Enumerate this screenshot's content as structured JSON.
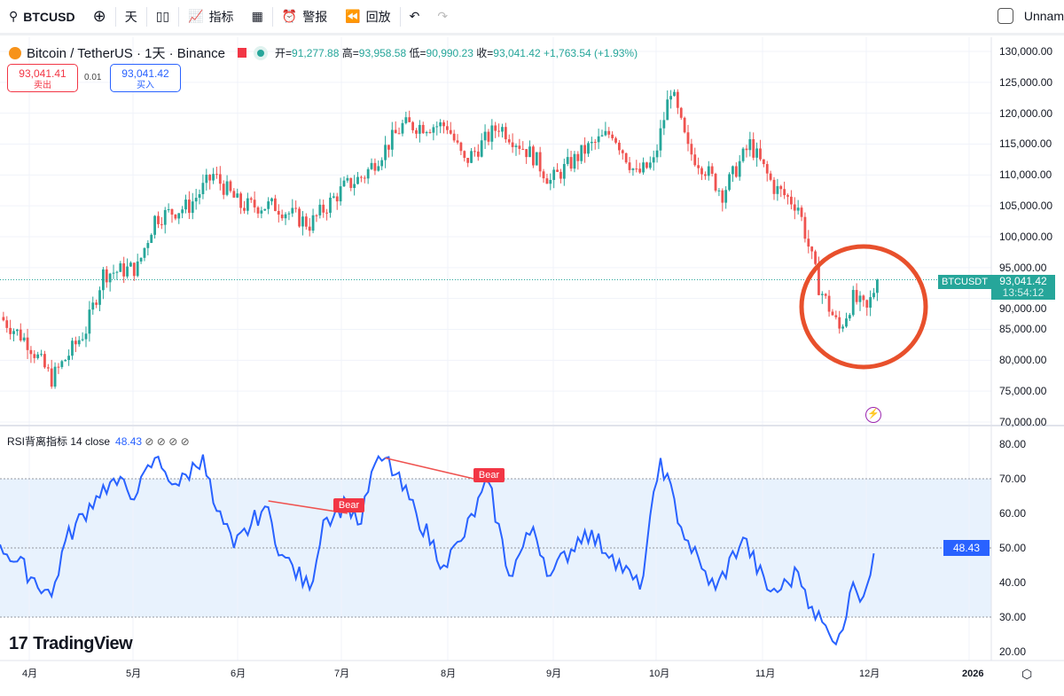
{
  "toolbar": {
    "symbol": "BTCUSD",
    "interval": "天",
    "indicators": "指标",
    "alerts": "警报",
    "replay": "回放",
    "layout_name": "Unnam"
  },
  "legend": {
    "title": "Bitcoin / TetherUS · 1天 · Binance",
    "open_label": "开=",
    "open": "91,277.88",
    "high_label": "高=",
    "high": "93,958.58",
    "low_label": "低=",
    "low": "90,990.23",
    "close_label": "收=",
    "close": "93,041.42",
    "change": "+1,763.54 (+1.93%)"
  },
  "trade": {
    "sell_price": "93,041.41",
    "sell_label": "卖出",
    "spread": "0.01",
    "buy_price": "93,041.42",
    "buy_label": "买入"
  },
  "price_axis": [
    "130,000.00",
    "125,000.00",
    "120,000.00",
    "115,000.00",
    "110,000.00",
    "105,000.00",
    "100,000.00",
    "95,000.00",
    "90,000.00",
    "85,000.00",
    "80,000.00",
    "75,000.00",
    "70,000.00"
  ],
  "last_price": {
    "symbol": "BTCUSDT",
    "price": "93,041.42",
    "countdown": "13:54:12"
  },
  "rsi": {
    "title": "RSI背离指标 14 close",
    "value": "48.43",
    "axis": [
      "80.00",
      "70.00",
      "60.00",
      "50.00",
      "40.00",
      "30.00",
      "20.00"
    ],
    "bear_label": "Bear"
  },
  "time_axis": [
    "4月",
    "5月",
    "6月",
    "7月",
    "8月",
    "9月",
    "10月",
    "11月",
    "12月",
    "2026"
  ],
  "brand": "TradingView",
  "colors": {
    "up": "#26a69a",
    "down": "#ef5350",
    "rsi": "#2962ff",
    "circle": "#e8502c"
  },
  "chart_data": {
    "type": "candlestick",
    "price_range": [
      70000,
      130000
    ],
    "close_keypoints": [
      [
        0,
        87000
      ],
      [
        8,
        83000
      ],
      [
        15,
        77000
      ],
      [
        25,
        85000
      ],
      [
        30,
        94000
      ],
      [
        40,
        95000
      ],
      [
        45,
        103000
      ],
      [
        55,
        105000
      ],
      [
        62,
        110000
      ],
      [
        70,
        105000
      ],
      [
        80,
        105000
      ],
      [
        90,
        102000
      ],
      [
        100,
        108000
      ],
      [
        106,
        110000
      ],
      [
        117,
        118000
      ],
      [
        130,
        118000
      ],
      [
        135,
        112000
      ],
      [
        145,
        118000
      ],
      [
        155,
        113000
      ],
      [
        160,
        109000
      ],
      [
        170,
        114000
      ],
      [
        178,
        117000
      ],
      [
        185,
        110000
      ],
      [
        190,
        112000
      ],
      [
        195,
        124000
      ],
      [
        200,
        114000
      ],
      [
        205,
        111000
      ],
      [
        210,
        107000
      ],
      [
        218,
        115000
      ],
      [
        225,
        108000
      ],
      [
        232,
        105000
      ],
      [
        238,
        92000
      ],
      [
        244,
        85000
      ],
      [
        248,
        90000
      ],
      [
        252,
        88000
      ],
      [
        255,
        93041
      ]
    ],
    "rsi_range": [
      20,
      80
    ],
    "rsi_keypoints": [
      [
        0,
        51
      ],
      [
        15,
        36
      ],
      [
        19,
        52
      ],
      [
        28,
        65
      ],
      [
        32,
        69
      ],
      [
        40,
        66
      ],
      [
        45,
        76
      ],
      [
        48,
        72
      ],
      [
        52,
        68
      ],
      [
        59,
        77
      ],
      [
        62,
        63
      ],
      [
        68,
        50
      ],
      [
        77,
        62
      ],
      [
        82,
        48
      ],
      [
        90,
        38
      ],
      [
        94,
        58
      ],
      [
        101,
        63
      ],
      [
        105,
        57
      ],
      [
        108,
        72
      ],
      [
        112,
        76
      ],
      [
        121,
        60
      ],
      [
        129,
        45
      ],
      [
        134,
        52
      ],
      [
        142,
        69
      ],
      [
        148,
        42
      ],
      [
        155,
        56
      ],
      [
        160,
        42
      ],
      [
        170,
        55
      ],
      [
        178,
        48
      ],
      [
        186,
        38
      ],
      [
        192,
        76
      ],
      [
        198,
        56
      ],
      [
        204,
        44
      ],
      [
        208,
        38
      ],
      [
        216,
        53
      ],
      [
        223,
        38
      ],
      [
        227,
        38
      ],
      [
        232,
        43
      ],
      [
        236,
        33
      ],
      [
        242,
        23
      ],
      [
        246,
        30
      ],
      [
        248,
        40
      ],
      [
        251,
        36
      ],
      [
        254,
        48.43
      ]
    ],
    "bear_divergences": [
      [
        [
          78,
          63.6
        ],
        [
          101,
          60
        ]
      ],
      [
        [
          112,
          76
        ],
        [
          142,
          69
        ]
      ]
    ]
  }
}
